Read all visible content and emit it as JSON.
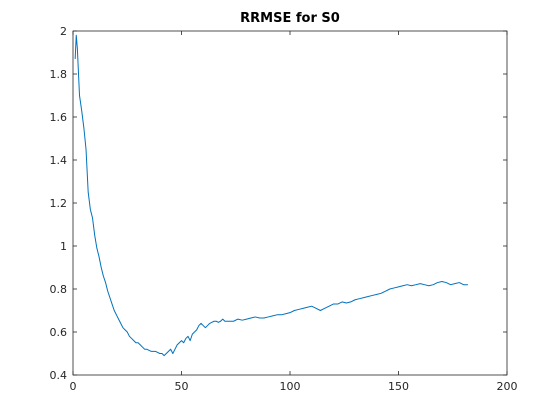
{
  "chart_data": {
    "type": "line",
    "title": "RRMSE for S0",
    "xlabel": "",
    "ylabel": "",
    "xlim": [
      0,
      200
    ],
    "ylim": [
      0.4,
      2
    ],
    "xticks": [
      0,
      50,
      100,
      150,
      200
    ],
    "yticks": [
      0.4,
      0.6,
      0.8,
      1,
      1.2,
      1.4,
      1.6,
      1.8,
      2
    ],
    "xtick_labels": [
      "0",
      "50",
      "100",
      "150",
      "200"
    ],
    "ytick_labels": [
      "0.4",
      "0.6",
      "0.8",
      "1",
      "1.2",
      "1.4",
      "1.6",
      "1.8",
      "2"
    ],
    "grid": false,
    "series": [
      {
        "color": "#0072bd",
        "x": [
          1,
          1.5,
          2,
          3,
          4,
          5,
          6,
          7,
          8,
          9,
          10,
          11,
          12,
          13,
          14,
          15,
          16,
          17,
          18,
          19,
          20,
          21,
          22,
          23,
          24,
          25,
          26,
          27,
          28,
          29,
          30,
          31,
          32,
          33,
          34,
          35,
          36,
          37,
          38,
          39,
          40,
          41,
          42,
          43,
          44,
          45,
          46,
          47,
          48,
          49,
          50,
          51,
          52,
          53,
          54,
          55,
          56,
          57,
          58,
          59,
          60,
          61,
          62,
          63,
          64,
          65,
          66,
          67,
          68,
          69,
          70,
          72,
          74,
          76,
          78,
          80,
          82,
          84,
          86,
          88,
          90,
          92,
          94,
          96,
          98,
          100,
          102,
          104,
          106,
          108,
          110,
          112,
          114,
          116,
          118,
          120,
          122,
          124,
          126,
          128,
          130,
          132,
          134,
          136,
          138,
          140,
          142,
          144,
          146,
          148,
          150,
          152,
          154,
          156,
          158,
          160,
          162,
          164,
          166,
          168,
          170,
          172,
          174,
          176,
          178,
          180,
          182
        ],
        "y": [
          1.87,
          1.98,
          1.92,
          1.7,
          1.63,
          1.55,
          1.45,
          1.25,
          1.17,
          1.13,
          1.05,
          0.99,
          0.95,
          0.9,
          0.86,
          0.83,
          0.79,
          0.76,
          0.73,
          0.7,
          0.68,
          0.66,
          0.64,
          0.62,
          0.61,
          0.6,
          0.58,
          0.57,
          0.56,
          0.55,
          0.55,
          0.54,
          0.53,
          0.52,
          0.52,
          0.515,
          0.51,
          0.51,
          0.51,
          0.505,
          0.5,
          0.5,
          0.49,
          0.5,
          0.51,
          0.52,
          0.5,
          0.52,
          0.54,
          0.55,
          0.56,
          0.55,
          0.57,
          0.58,
          0.56,
          0.59,
          0.6,
          0.61,
          0.63,
          0.64,
          0.63,
          0.62,
          0.63,
          0.64,
          0.645,
          0.65,
          0.65,
          0.645,
          0.65,
          0.66,
          0.65,
          0.65,
          0.65,
          0.66,
          0.655,
          0.66,
          0.665,
          0.67,
          0.665,
          0.665,
          0.67,
          0.675,
          0.68,
          0.68,
          0.685,
          0.69,
          0.7,
          0.705,
          0.71,
          0.715,
          0.72,
          0.71,
          0.7,
          0.71,
          0.72,
          0.73,
          0.73,
          0.74,
          0.735,
          0.74,
          0.75,
          0.755,
          0.76,
          0.765,
          0.77,
          0.775,
          0.78,
          0.79,
          0.8,
          0.805,
          0.81,
          0.815,
          0.82,
          0.815,
          0.82,
          0.825,
          0.82,
          0.815,
          0.82,
          0.83,
          0.835,
          0.83,
          0.82,
          0.825,
          0.83,
          0.82,
          0.82
        ]
      }
    ]
  }
}
